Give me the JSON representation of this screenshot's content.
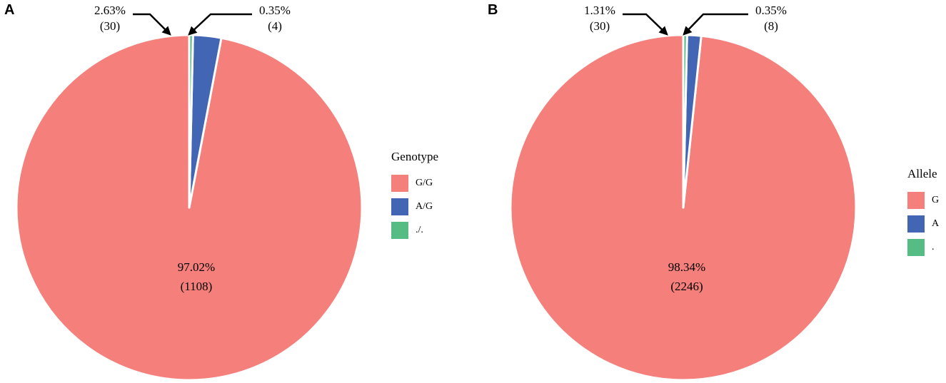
{
  "charts": [
    {
      "panel_label": "A",
      "legend_title": "Genotype",
      "legend": [
        {
          "label": "G/G",
          "color": "#F47F7B"
        },
        {
          "label": "A/G",
          "color": "#4266B4"
        },
        {
          "label": "./.",
          "color": "#55BD84"
        }
      ]
    },
    {
      "panel_label": "B",
      "legend_title": "Allele",
      "legend": [
        {
          "label": "G",
          "color": "#F47F7B"
        },
        {
          "label": "A",
          "color": "#4266B4"
        },
        {
          "label": ".",
          "color": "#55BD84"
        }
      ]
    }
  ],
  "chart_data": [
    {
      "type": "pie",
      "title": "",
      "legend_title": "Genotype",
      "legend_position": "right",
      "slices": [
        {
          "label": "G/G",
          "percent": 97.02,
          "count": 1108,
          "percent_text": "97.02%",
          "count_text": "(1108)",
          "color": "#F47F7B"
        },
        {
          "label": "A/G",
          "percent": 2.63,
          "count": 30,
          "percent_text": "2.63%",
          "count_text": "(30)",
          "color": "#4266B4"
        },
        {
          "label": "./.",
          "percent": 0.35,
          "count": 4,
          "percent_text": "0.35%",
          "count_text": "(4)",
          "color": "#55BD84"
        }
      ]
    },
    {
      "type": "pie",
      "title": "",
      "legend_title": "Allele",
      "legend_position": "right",
      "slices": [
        {
          "label": "G",
          "percent": 98.34,
          "count": 2246,
          "percent_text": "98.34%",
          "count_text": "(2246)",
          "color": "#F47F7B"
        },
        {
          "label": "A",
          "percent": 1.31,
          "count": 30,
          "percent_text": "1.31%",
          "count_text": "(30)",
          "color": "#4266B4"
        },
        {
          "label": ".",
          "percent": 0.35,
          "count": 8,
          "percent_text": "0.35%",
          "count_text": "(8)",
          "color": "#55BD84"
        }
      ]
    }
  ]
}
